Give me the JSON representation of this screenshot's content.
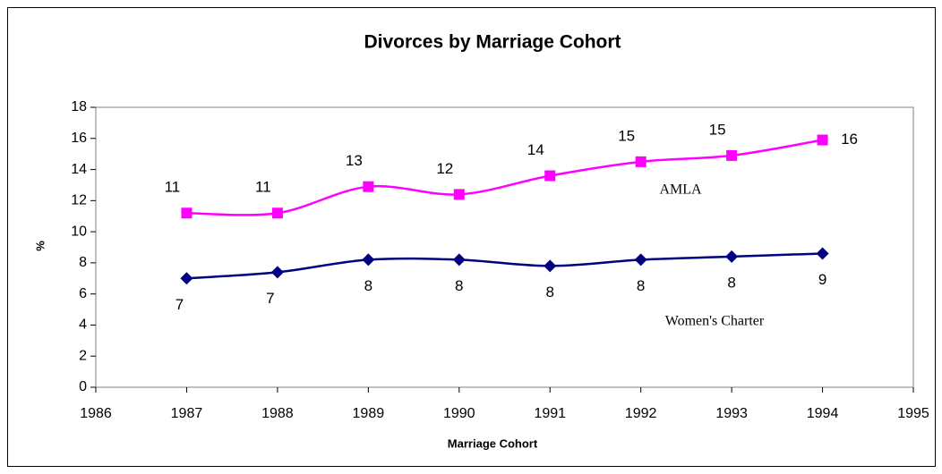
{
  "chart_data": {
    "type": "line",
    "title": "Divorces by Marriage Cohort",
    "x_label": "Marriage Cohort",
    "y_label": "%",
    "x": [
      1987,
      1988,
      1989,
      1990,
      1991,
      1992,
      1993,
      1994
    ],
    "series": [
      {
        "name": "AMLA",
        "color": "#ff00ff",
        "marker": "square",
        "values": [
          11.2,
          11.2,
          12.9,
          12.4,
          13.6,
          14.5,
          14.9,
          15.9
        ],
        "value_labels": [
          "11",
          "11",
          "13",
          "12",
          "14",
          "15",
          "15",
          "16"
        ]
      },
      {
        "name": "Women's Charter",
        "color": "#000080",
        "marker": "diamond",
        "values": [
          7.0,
          7.4,
          8.2,
          8.2,
          7.8,
          8.2,
          8.4,
          8.6
        ],
        "value_labels": [
          "7",
          "7",
          "8",
          "8",
          "8",
          "8",
          "8",
          "9"
        ]
      }
    ],
    "xlim": [
      1986,
      1995
    ],
    "xticks": [
      1986,
      1987,
      1988,
      1989,
      1990,
      1991,
      1992,
      1993,
      1994,
      1995
    ],
    "ylim": [
      0,
      18
    ],
    "yticks": [
      0,
      2,
      4,
      6,
      8,
      10,
      12,
      14,
      16,
      18
    ],
    "grid": false,
    "smooth": true
  }
}
